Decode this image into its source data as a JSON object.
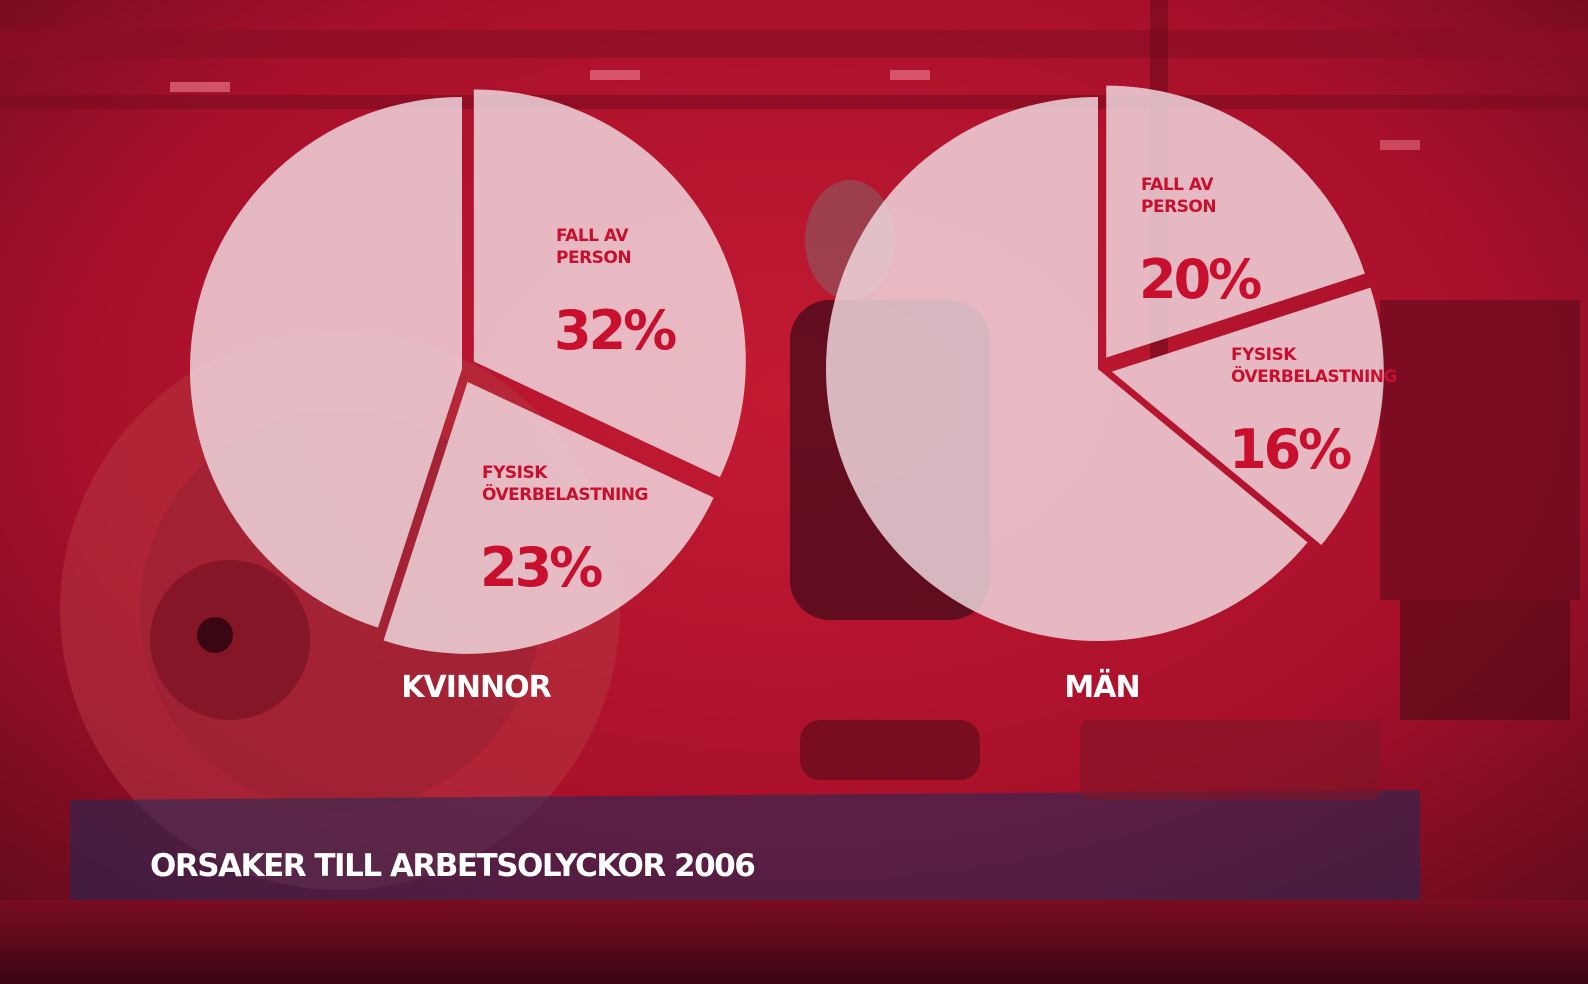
{
  "title": "ORSAKER TILL ARBETSOLYCKOR 2006",
  "colors": {
    "background": "#b0122a",
    "pie": "#f2dde3",
    "pie_opacity": 0.82,
    "label": "#c8102e",
    "text": "#ffffff"
  },
  "chart_data": [
    {
      "type": "pie",
      "group": "KVINNOR",
      "slices": [
        {
          "label": [
            "FALL AV",
            "PERSON"
          ],
          "value": 32,
          "value_label": "32%",
          "exploded": true
        },
        {
          "label": [
            "FYSISK",
            "ÖVERBELASTNING"
          ],
          "value": 23,
          "value_label": "23%",
          "exploded": true
        },
        {
          "label": [],
          "value": 45,
          "value_label": "",
          "exploded": false
        }
      ]
    },
    {
      "type": "pie",
      "group": "MÄN",
      "slices": [
        {
          "label": [
            "FALL AV",
            "PERSON"
          ],
          "value": 20,
          "value_label": "20%",
          "exploded": true
        },
        {
          "label": [
            "FYSISK",
            "ÖVERBELASTNING"
          ],
          "value": 16,
          "value_label": "16%",
          "exploded": true
        },
        {
          "label": [],
          "value": 64,
          "value_label": "",
          "exploded": false
        }
      ]
    }
  ]
}
